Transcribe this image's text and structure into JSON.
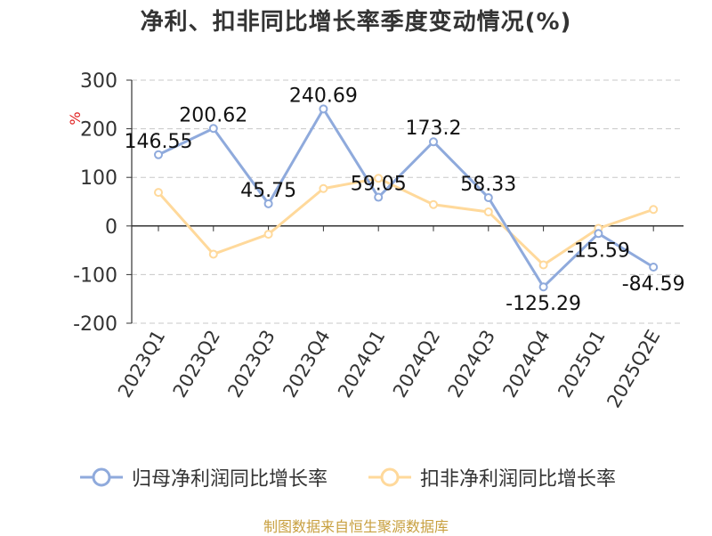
{
  "colors": {
    "series1": "#8faadc",
    "series2": "#ffd99b",
    "axis": "#333333",
    "grid": "#c8c8c8",
    "ylabel": "#e02020",
    "source": "#c8a040"
  },
  "chart_data": {
    "type": "line",
    "title": "净利、扣非同比增长率季度变动情况(%)",
    "ylabel": "%",
    "ylim": [
      -200,
      300
    ],
    "yticks": [
      300,
      200,
      100,
      0,
      -100,
      -200
    ],
    "grid": true,
    "legend_position": "bottom",
    "categories": [
      "2023Q1",
      "2023Q2",
      "2023Q3",
      "2023Q4",
      "2024Q1",
      "2024Q2",
      "2024Q3",
      "2024Q4",
      "2025Q1",
      "2025Q2E"
    ],
    "series": [
      {
        "name": "归母净利润同比增长率",
        "values": [
          146.55,
          200.62,
          45.75,
          240.69,
          59.05,
          173.2,
          58.33,
          -125.29,
          -15.59,
          -84.59
        ],
        "labels": [
          "146.55",
          "200.62",
          "45.75",
          "240.69",
          "59.05",
          "173.2",
          "58.33",
          "-125.29",
          "-15.59",
          "-84.59"
        ]
      },
      {
        "name": "扣非净利润同比增长率",
        "values": [
          69,
          -58,
          -17,
          77,
          98,
          44,
          29,
          -80,
          -5,
          34
        ]
      }
    ]
  },
  "source": "制图数据来自恒生聚源数据库"
}
